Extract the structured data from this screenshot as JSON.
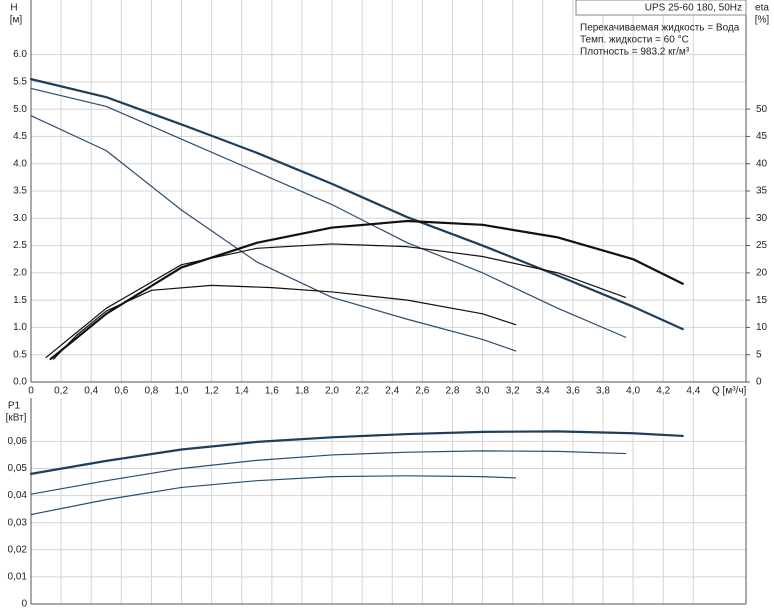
{
  "chart_data": [
    {
      "type": "line",
      "y_label": "H",
      "y_unit": "[м]",
      "y2_label": "eta",
      "y2_unit": "[%]",
      "x_label": "Q [м³/ч]",
      "info": [
        "UPS 25-60 180, 50Hz",
        "Перекачиваемая жидкость = Вода",
        "Темп. жидкости = 60 °C",
        "Плотность = 983.2 кг/м³"
      ],
      "grid": true,
      "xlim": [
        0,
        4.75
      ],
      "xticks": [
        0,
        {
          "value": 0.2,
          "label": "0,2"
        },
        {
          "value": 0.4,
          "label": "0,4"
        },
        {
          "value": 0.6,
          "label": "0,6"
        },
        {
          "value": 0.8,
          "label": "0,8"
        },
        {
          "value": 1.0,
          "label": "1,0"
        },
        {
          "value": 1.2,
          "label": "1,2"
        },
        {
          "value": 1.4,
          "label": "1,4"
        },
        {
          "value": 1.6,
          "label": "1,6"
        },
        {
          "value": 1.8,
          "label": "1,8"
        },
        {
          "value": 2.0,
          "label": "2,0"
        },
        {
          "value": 2.2,
          "label": "2,2"
        },
        {
          "value": 2.4,
          "label": "2,4"
        },
        {
          "value": 2.6,
          "label": "2,6"
        },
        {
          "value": 2.8,
          "label": "2,8"
        },
        {
          "value": 3.0,
          "label": "3,0"
        },
        {
          "value": 3.2,
          "label": "3,2"
        },
        {
          "value": 3.4,
          "label": "3,4"
        },
        {
          "value": 3.6,
          "label": "3,6"
        },
        {
          "value": 3.8,
          "label": "3,8"
        },
        {
          "value": 4.0,
          "label": "4,0"
        },
        {
          "value": 4.2,
          "label": "4,2"
        },
        {
          "value": 4.4,
          "label": "4,4"
        }
      ],
      "ylim": [
        0,
        7.0
      ],
      "yticks": [
        {
          "value": 0,
          "label": "0.0"
        },
        0.5,
        {
          "value": 1,
          "label": "1.0"
        },
        1.5,
        {
          "value": 2,
          "label": "2.0"
        },
        2.5,
        {
          "value": 3,
          "label": "3.0"
        },
        3.5,
        {
          "value": 4,
          "label": "4.0"
        },
        4.5,
        {
          "value": 5,
          "label": "5.0"
        },
        5.5,
        {
          "value": 6,
          "label": "6.0"
        }
      ],
      "y2lim": [
        0,
        70
      ],
      "y2ticks": [
        0,
        5,
        10,
        15,
        20,
        25,
        30,
        35,
        40,
        45,
        50
      ],
      "series": [
        {
          "color": "#1d3f5e",
          "width": 2.2,
          "x": [
            0,
            0.5,
            1,
            1.5,
            2,
            2.5,
            3,
            3.5,
            4,
            4.33
          ],
          "values": [
            5.55,
            5.22,
            4.72,
            4.2,
            3.63,
            3.02,
            2.5,
            1.95,
            1.38,
            0.97
          ]
        },
        {
          "color": "#2a4d6e",
          "width": 1.2,
          "x": [
            0,
            0.5,
            1,
            1.5,
            2,
            2.5,
            3,
            3.5,
            3.95
          ],
          "values": [
            5.38,
            5.05,
            4.45,
            3.85,
            3.25,
            2.55,
            2.0,
            1.35,
            0.82
          ]
        },
        {
          "color": "#2a4d6e",
          "width": 1.2,
          "x": [
            0,
            0.5,
            1,
            1.5,
            2,
            2.5,
            3,
            3.22
          ],
          "values": [
            4.88,
            4.24,
            3.15,
            2.2,
            1.55,
            1.15,
            0.78,
            0.57
          ]
        },
        {
          "color": "#111111",
          "width": 2.2,
          "axis": "y2",
          "x": [
            0.13,
            0.3,
            0.5,
            1,
            1.5,
            2,
            2.5,
            3,
            3.5,
            4,
            4.33
          ],
          "values": [
            4.2,
            8,
            12.5,
            21,
            25.5,
            28.3,
            29.5,
            28.8,
            26.5,
            22.5,
            18
          ]
        },
        {
          "color": "#111111",
          "width": 1.2,
          "axis": "y2",
          "x": [
            0.1,
            0.3,
            0.5,
            1,
            1.5,
            2,
            2.5,
            3,
            3.5,
            3.95
          ],
          "values": [
            4.5,
            9,
            13.5,
            21.5,
            24.5,
            25.3,
            24.8,
            23,
            20,
            15.5
          ]
        },
        {
          "color": "#111111",
          "width": 1.2,
          "axis": "y2",
          "x": [
            0.15,
            0.3,
            0.5,
            0.8,
            1.2,
            1.6,
            2,
            2.5,
            3,
            3.22
          ],
          "values": [
            4.2,
            8.5,
            13,
            16.8,
            17.7,
            17.3,
            16.5,
            15,
            12.5,
            10.5
          ]
        }
      ]
    },
    {
      "type": "line",
      "y_label": "P1",
      "y_unit": "[кВт]",
      "grid": true,
      "show_xtick_labels": false,
      "xlim": [
        0,
        4.75
      ],
      "xticks": [
        0,
        0.2,
        0.4,
        0.6,
        0.8,
        1.0,
        1.2,
        1.4,
        1.6,
        1.8,
        2.0,
        2.2,
        2.4,
        2.6,
        2.8,
        3.0,
        3.2,
        3.4,
        3.6,
        3.8,
        4.0,
        4.2,
        4.4
      ],
      "ylim": [
        0,
        0.076
      ],
      "yticks": [
        0,
        {
          "value": 0.01,
          "label": "0,01"
        },
        {
          "value": 0.02,
          "label": "0,02"
        },
        {
          "value": 0.03,
          "label": "0,03"
        },
        {
          "value": 0.04,
          "label": "0,04"
        },
        {
          "value": 0.05,
          "label": "0,05"
        },
        {
          "value": 0.06,
          "label": "0,06"
        }
      ],
      "series": [
        {
          "color": "#1d3f5e",
          "width": 2.2,
          "x": [
            0,
            0.5,
            1,
            1.5,
            2,
            2.5,
            3,
            3.5,
            4,
            4.33
          ],
          "values": [
            0.048,
            0.0528,
            0.057,
            0.0598,
            0.0615,
            0.0627,
            0.0635,
            0.0637,
            0.063,
            0.062
          ]
        },
        {
          "color": "#2a4d6e",
          "width": 1.2,
          "x": [
            0,
            0.5,
            1,
            1.5,
            2,
            2.5,
            3,
            3.5,
            3.95
          ],
          "values": [
            0.0405,
            0.0455,
            0.05,
            0.053,
            0.055,
            0.056,
            0.0565,
            0.0563,
            0.0555
          ]
        },
        {
          "color": "#2a4d6e",
          "width": 1.2,
          "x": [
            0,
            0.5,
            1,
            1.5,
            2,
            2.5,
            3,
            3.22
          ],
          "values": [
            0.033,
            0.0385,
            0.043,
            0.0455,
            0.047,
            0.0473,
            0.047,
            0.0465
          ]
        }
      ]
    }
  ]
}
